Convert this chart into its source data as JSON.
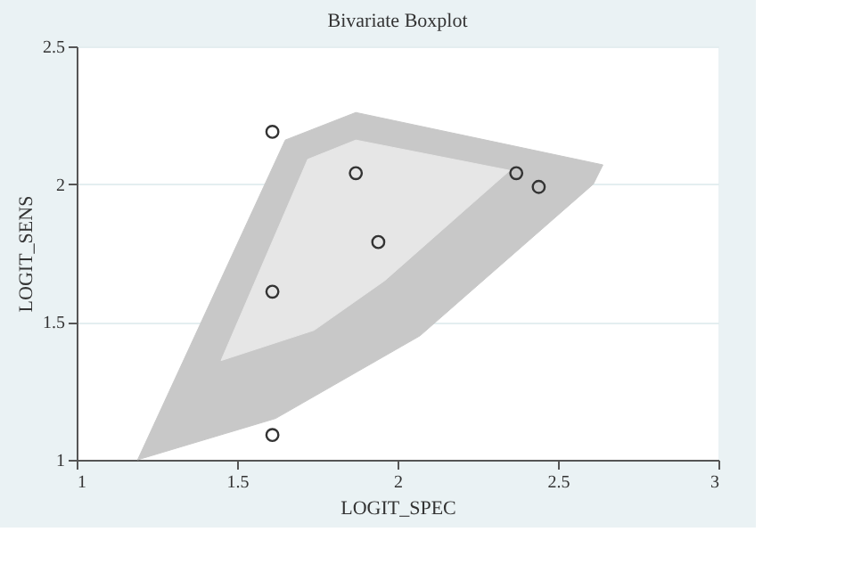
{
  "chart_data": {
    "type": "scatter",
    "title": "Bivariate Boxplot",
    "xlabel": "LOGIT_SPEC",
    "ylabel": "LOGIT_SENS",
    "xlim": [
      1,
      3
    ],
    "xticks": [
      1,
      1.5,
      2,
      2.5,
      3
    ],
    "ylim": [
      1,
      2.5
    ],
    "yticks": [
      1,
      1.5,
      2,
      2.5
    ],
    "grid": "y",
    "series": [
      {
        "type": "area",
        "color": "#c8c8c8",
        "x": [
          1.19,
          1.65,
          1.87,
          2.64,
          2.61,
          2.07,
          1.62
        ],
        "values": [
          1.0,
          2.16,
          2.26,
          2.07,
          2.0,
          1.45,
          1.15
        ]
      },
      {
        "type": "area",
        "color": "#e6e6e6",
        "x": [
          1.45,
          1.72,
          1.87,
          2.35,
          1.96,
          1.74
        ],
        "values": [
          1.36,
          2.09,
          2.16,
          2.05,
          1.65,
          1.47
        ]
      },
      {
        "marker": "circle",
        "color": "#333333",
        "x": [
          1.61,
          1.87,
          2.37,
          2.44,
          1.94,
          1.61,
          1.61
        ],
        "values": [
          2.19,
          2.04,
          2.04,
          1.99,
          1.79,
          1.61,
          1.09
        ]
      }
    ]
  }
}
